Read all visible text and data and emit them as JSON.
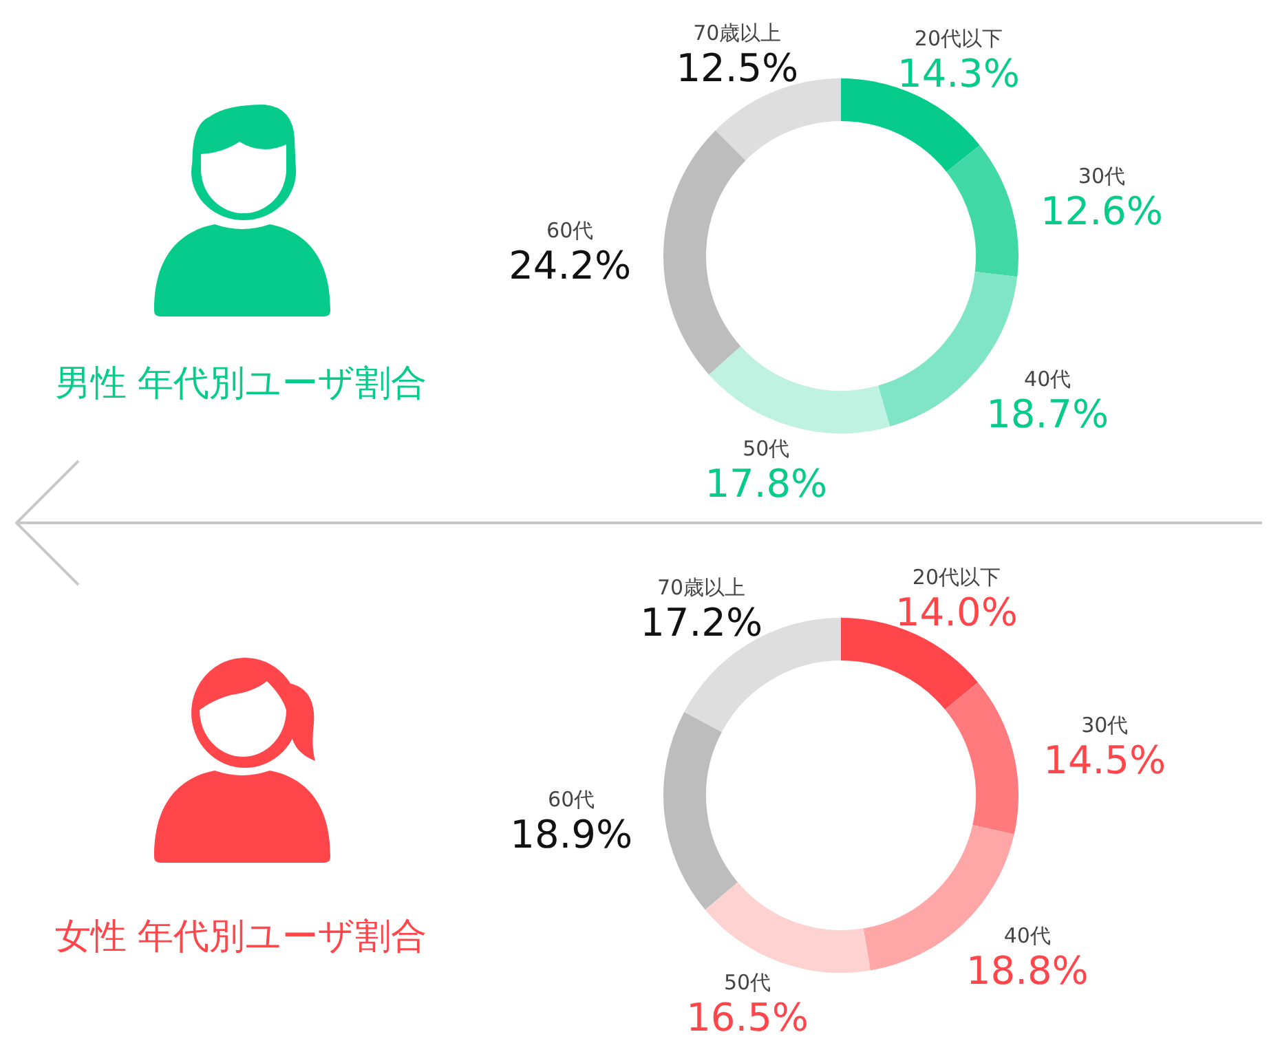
{
  "chart_data": [
    {
      "type": "donut",
      "title": "男性 年代別ユーザ割合",
      "categories": [
        "20代以下",
        "30代",
        "40代",
        "50代",
        "60代",
        "70歳以上"
      ],
      "values": [
        14.3,
        12.6,
        18.7,
        17.8,
        24.2,
        12.5
      ],
      "colors": [
        "#06cb8a",
        "#40d9a6",
        "#80e5c4",
        "#bff2e1",
        "#bdbdbd",
        "#dedede"
      ],
      "value_labels": [
        "14.3%",
        "12.6%",
        "18.7%",
        "17.8%",
        "24.2%",
        "12.5%"
      ]
    },
    {
      "type": "donut",
      "title": "女性 年代別ユーザ割合",
      "categories": [
        "20代以下",
        "30代",
        "40代",
        "50代",
        "60代",
        "70歳以上"
      ],
      "values": [
        14.0,
        14.5,
        18.8,
        16.5,
        18.9,
        17.2
      ],
      "colors": [
        "#ff464b",
        "#ff7a7d",
        "#ffa6a6",
        "#ffd2d2",
        "#bdbdbd",
        "#dedede"
      ],
      "value_labels": [
        "14.0%",
        "14.5%",
        "18.8%",
        "16.5%",
        "18.9%",
        "17.2%"
      ]
    }
  ]
}
